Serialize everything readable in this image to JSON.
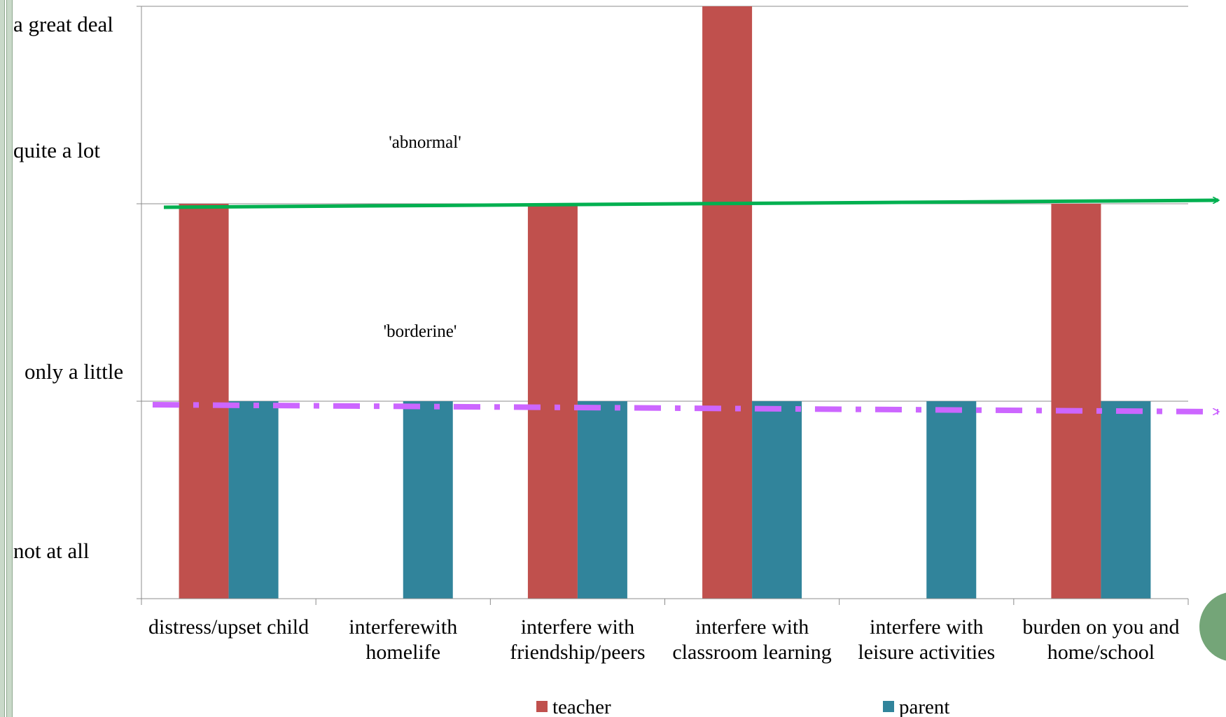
{
  "chart_data": {
    "type": "bar",
    "categories": [
      [
        "distress/upset child"
      ],
      [
        "interferewith",
        "homelife"
      ],
      [
        "interfere with",
        "friendship/peers"
      ],
      [
        "interfere with",
        "classroom learning"
      ],
      [
        "interfere with",
        "leisure activities"
      ],
      [
        "burden on you and",
        "home/school"
      ]
    ],
    "y_tick_labels": [
      "not at all",
      "only a little",
      "quite a lot",
      "a great deal"
    ],
    "ylim": [
      0,
      3
    ],
    "series": [
      {
        "name": "teacher",
        "color": "#c0504d",
        "values": [
          2,
          0,
          2,
          3,
          0,
          2
        ]
      },
      {
        "name": "parent",
        "color": "#31849b",
        "values": [
          1,
          1,
          1,
          1,
          1,
          1
        ]
      }
    ],
    "annotations": [
      "'abnormal'",
      "'borderine'"
    ],
    "thresholds": [
      {
        "label_ref": "'abnormal'",
        "value": 2,
        "color": "#00b050",
        "style": "solid-arrow"
      },
      {
        "label_ref": "'borderine'",
        "value": 1,
        "color": "#cc66ff",
        "style": "dash-dot-arrow"
      }
    ],
    "grid": true,
    "legend_position": "bottom"
  }
}
